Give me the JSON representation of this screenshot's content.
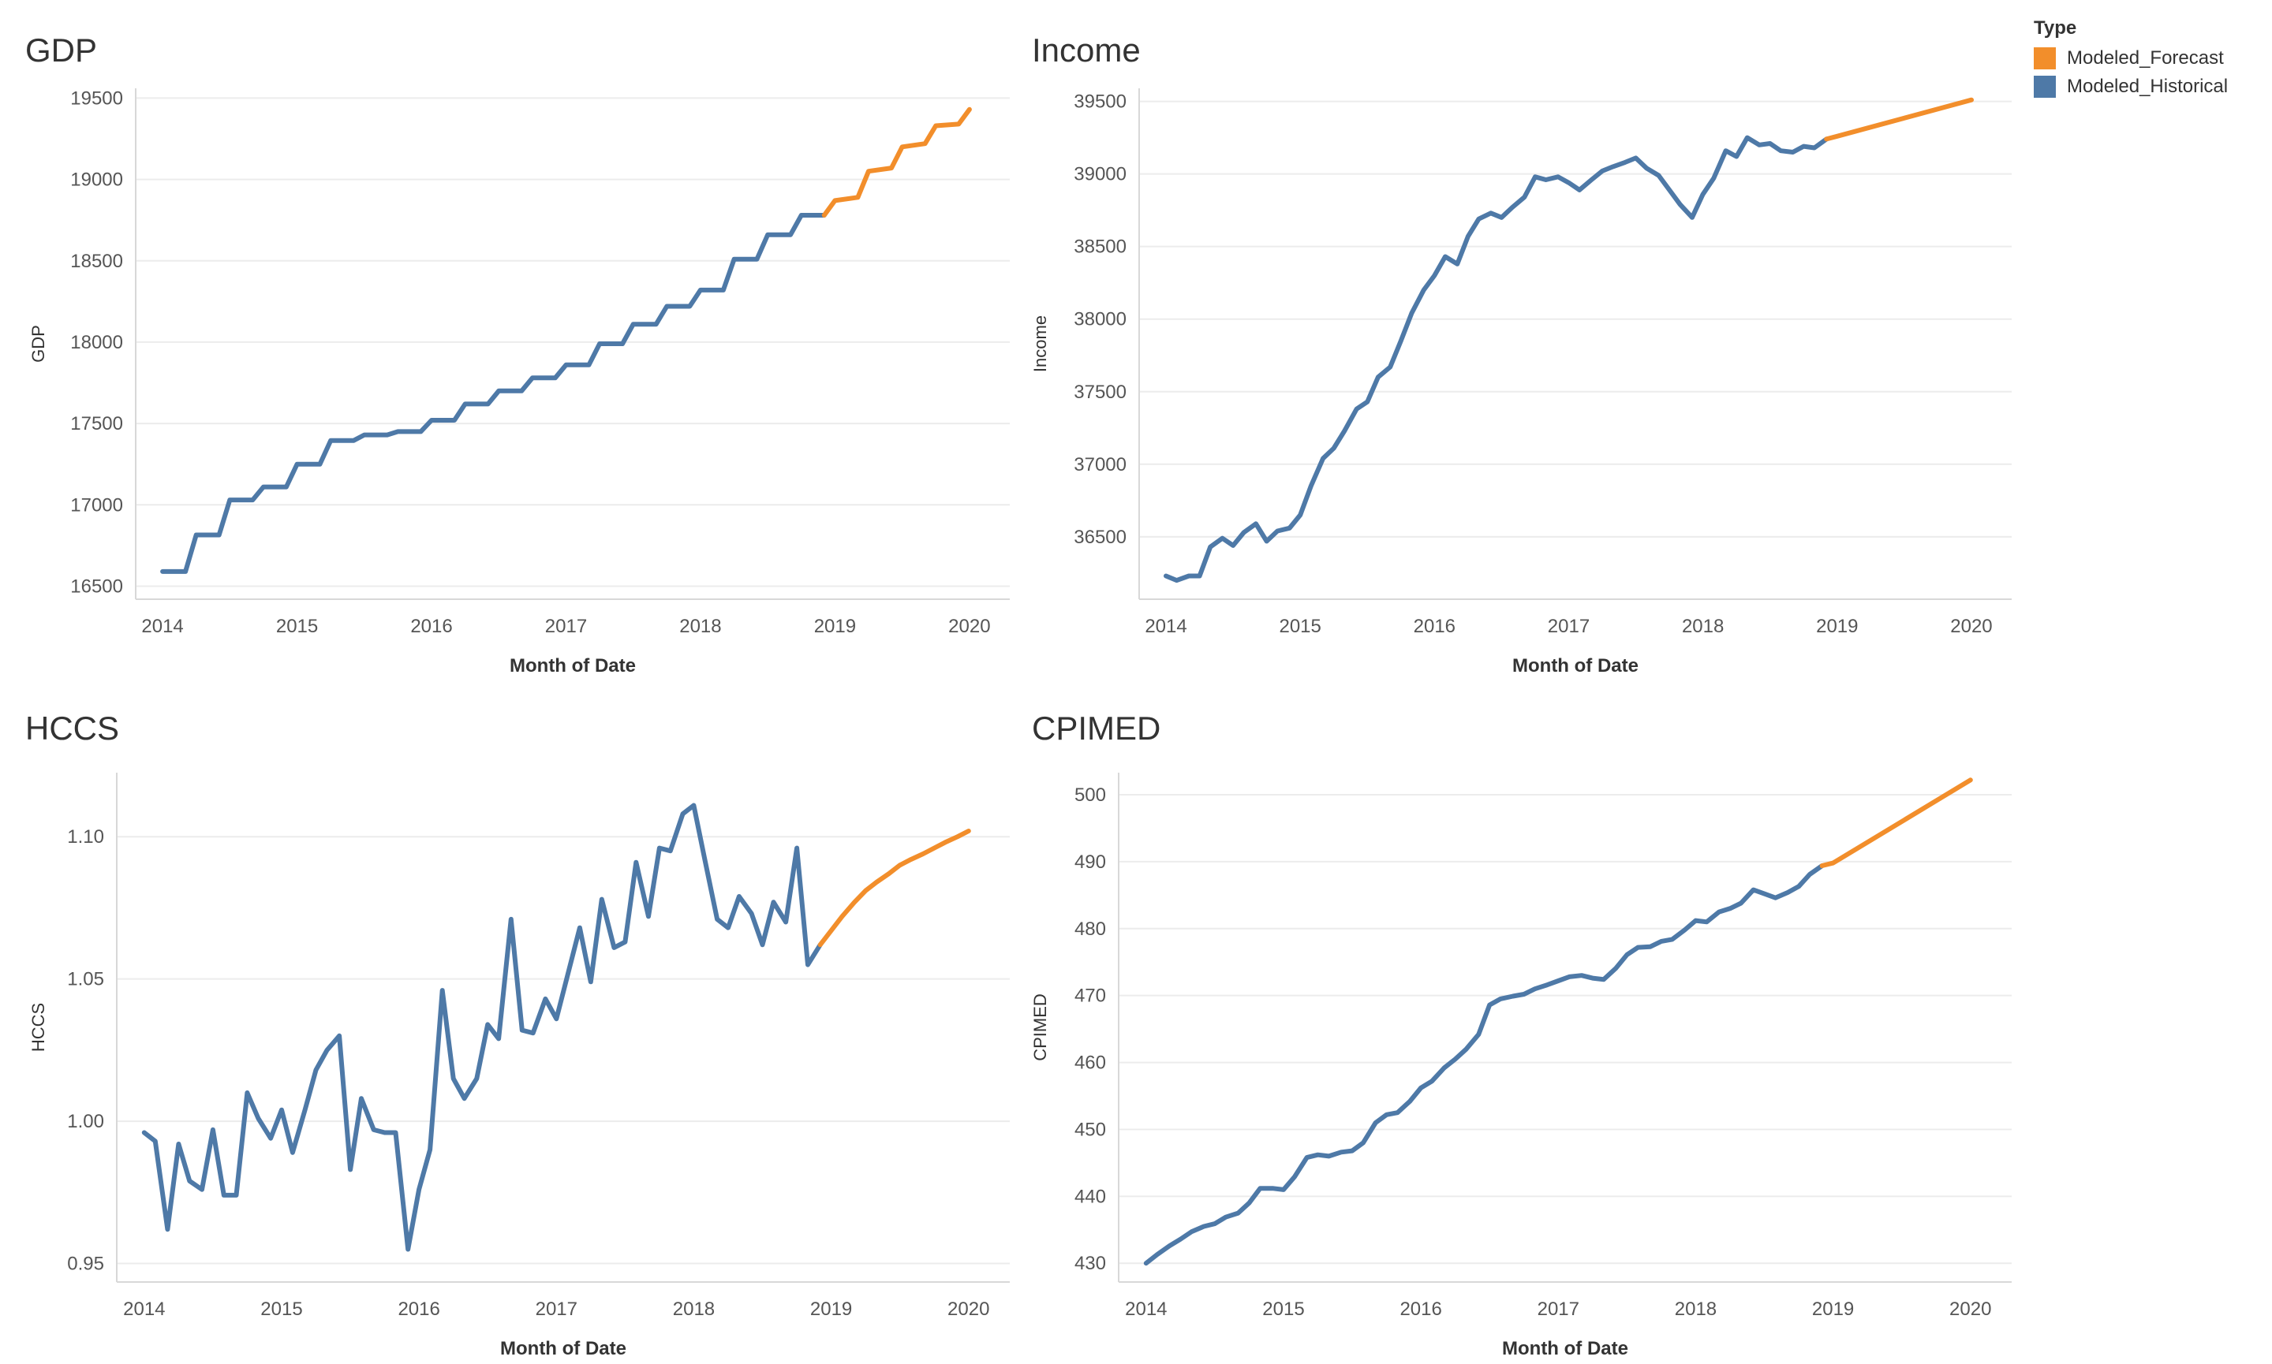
{
  "legend": {
    "title": "Type",
    "items": [
      {
        "label": "Modeled_Forecast",
        "color": "#F28E2B"
      },
      {
        "label": "Modeled_Historical",
        "color": "#4E79A7"
      }
    ]
  },
  "chart_data": [
    {
      "type": "line",
      "title": "GDP",
      "xlabel": "Month of Date",
      "ylabel": "GDP",
      "x_ticks": [
        2014,
        2015,
        2016,
        2017,
        2018,
        2019,
        2020
      ],
      "xlim": [
        2013.8,
        2020.3
      ],
      "y_ticks": [
        16500,
        17000,
        17500,
        18000,
        18500,
        19000,
        19500
      ],
      "ylim": [
        16420,
        19560
      ],
      "series": [
        {
          "name": "Modeled_Historical",
          "color": "#4E79A7",
          "x": [
            2014.0,
            2014.17,
            2014.25,
            2014.42,
            2014.5,
            2014.67,
            2014.75,
            2014.92,
            2015.0,
            2015.17,
            2015.25,
            2015.42,
            2015.5,
            2015.67,
            2015.75,
            2015.92,
            2016.0,
            2016.17,
            2016.25,
            2016.42,
            2016.5,
            2016.67,
            2016.75,
            2016.92,
            2017.0,
            2017.17,
            2017.25,
            2017.42,
            2017.5,
            2017.67,
            2017.75,
            2017.92,
            2018.0,
            2018.17,
            2018.25,
            2018.42,
            2018.5,
            2018.67,
            2018.75,
            2018.92
          ],
          "y": [
            16590,
            16590,
            16815,
            16815,
            17030,
            17030,
            17110,
            17110,
            17250,
            17250,
            17395,
            17395,
            17430,
            17430,
            17450,
            17450,
            17520,
            17520,
            17620,
            17620,
            17700,
            17700,
            17780,
            17780,
            17860,
            17860,
            17990,
            17990,
            18110,
            18110,
            18220,
            18220,
            18320,
            18320,
            18510,
            18510,
            18660,
            18660,
            18780,
            18780
          ]
        },
        {
          "name": "Modeled_Forecast",
          "color": "#F28E2B",
          "x": [
            2018.92,
            2019.0,
            2019.17,
            2019.25,
            2019.42,
            2019.5,
            2019.67,
            2019.75,
            2019.92,
            2020.0
          ],
          "y": [
            18780,
            18870,
            18890,
            19050,
            19070,
            19200,
            19220,
            19330,
            19340,
            19430
          ]
        }
      ]
    },
    {
      "type": "line",
      "title": "Income",
      "xlabel": "Month of Date",
      "ylabel": "Income",
      "x_ticks": [
        2014,
        2015,
        2016,
        2017,
        2018,
        2019,
        2020
      ],
      "xlim": [
        2013.8,
        2020.3
      ],
      "y_ticks": [
        36500,
        37000,
        37500,
        38000,
        38500,
        39000,
        39500
      ],
      "ylim": [
        36070,
        39590
      ],
      "series": [
        {
          "name": "Modeled_Historical",
          "color": "#4E79A7",
          "x": [
            2014.0,
            2014.08,
            2014.17,
            2014.25,
            2014.33,
            2014.42,
            2014.5,
            2014.58,
            2014.67,
            2014.75,
            2014.83,
            2014.92,
            2015.0,
            2015.08,
            2015.17,
            2015.25,
            2015.33,
            2015.42,
            2015.5,
            2015.58,
            2015.67,
            2015.75,
            2015.83,
            2015.92,
            2016.0,
            2016.08,
            2016.17,
            2016.25,
            2016.33,
            2016.42,
            2016.5,
            2016.58,
            2016.67,
            2016.75,
            2016.83,
            2016.92,
            2017.0,
            2017.08,
            2017.17,
            2017.25,
            2017.33,
            2017.42,
            2017.5,
            2017.58,
            2017.67,
            2017.75,
            2017.83,
            2017.92,
            2018.0,
            2018.08,
            2018.17,
            2018.25,
            2018.33,
            2018.42,
            2018.5,
            2018.58,
            2018.67,
            2018.75,
            2018.83,
            2018.92
          ],
          "y": [
            36230,
            36200,
            36230,
            36230,
            36430,
            36490,
            36440,
            36530,
            36590,
            36470,
            36540,
            36560,
            36650,
            36850,
            37040,
            37110,
            37230,
            37380,
            37430,
            37600,
            37670,
            37850,
            38040,
            38200,
            38300,
            38430,
            38380,
            38570,
            38690,
            38730,
            38700,
            38770,
            38840,
            38980,
            38960,
            38980,
            38940,
            38890,
            38960,
            39020,
            39050,
            39080,
            39110,
            39040,
            38990,
            38890,
            38790,
            38700,
            38860,
            38970,
            39160,
            39120,
            39250,
            39200,
            39210,
            39160,
            39150,
            39190,
            39180,
            39240
          ]
        },
        {
          "name": "Modeled_Forecast",
          "color": "#F28E2B",
          "x": [
            2018.92,
            2019.0,
            2020.0
          ],
          "y": [
            39240,
            39260,
            39510
          ]
        }
      ]
    },
    {
      "type": "line",
      "title": "HCCS",
      "xlabel": "Month of Date",
      "ylabel": "HCCS",
      "x_ticks": [
        2014,
        2015,
        2016,
        2017,
        2018,
        2019,
        2020
      ],
      "xlim": [
        2013.8,
        2020.3
      ],
      "y_ticks": [
        0.95,
        1.0,
        1.05,
        1.1
      ],
      "y_tick_labels": [
        "0.95",
        "1.00",
        "1.05",
        "1.10"
      ],
      "ylim": [
        0.9435,
        1.1225
      ],
      "series": [
        {
          "name": "Modeled_Historical",
          "color": "#4E79A7",
          "x": [
            2014.0,
            2014.08,
            2014.17,
            2014.25,
            2014.33,
            2014.42,
            2014.5,
            2014.58,
            2014.67,
            2014.75,
            2014.83,
            2014.92,
            2015.0,
            2015.08,
            2015.17,
            2015.25,
            2015.33,
            2015.42,
            2015.5,
            2015.58,
            2015.67,
            2015.75,
            2015.83,
            2015.92,
            2016.0,
            2016.08,
            2016.17,
            2016.25,
            2016.33,
            2016.42,
            2016.5,
            2016.58,
            2016.67,
            2016.75,
            2016.83,
            2016.92,
            2017.0,
            2017.08,
            2017.17,
            2017.25,
            2017.33,
            2017.42,
            2017.5,
            2017.58,
            2017.67,
            2017.75,
            2017.83,
            2017.92,
            2018.0,
            2018.08,
            2018.17,
            2018.25,
            2018.33,
            2018.42,
            2018.5,
            2018.58,
            2018.67,
            2018.75,
            2018.83,
            2018.92
          ],
          "y": [
            0.996,
            0.993,
            0.962,
            0.992,
            0.979,
            0.976,
            0.997,
            0.974,
            0.974,
            1.01,
            1.001,
            0.994,
            1.004,
            0.989,
            1.004,
            1.018,
            1.025,
            1.03,
            0.983,
            1.008,
            0.997,
            0.996,
            0.996,
            0.955,
            0.976,
            0.99,
            1.046,
            1.015,
            1.008,
            1.015,
            1.034,
            1.029,
            1.071,
            1.032,
            1.031,
            1.043,
            1.036,
            1.051,
            1.068,
            1.049,
            1.078,
            1.061,
            1.063,
            1.091,
            1.072,
            1.096,
            1.095,
            1.108,
            1.111,
            1.092,
            1.071,
            1.068,
            1.079,
            1.073,
            1.062,
            1.077,
            1.07,
            1.096,
            1.055,
            1.062
          ]
        },
        {
          "name": "Modeled_Forecast",
          "color": "#F28E2B",
          "x": [
            2018.92,
            2019.0,
            2019.08,
            2019.17,
            2019.25,
            2019.33,
            2019.42,
            2019.5,
            2019.58,
            2019.67,
            2019.75,
            2019.83,
            2019.92,
            2020.0
          ],
          "y": [
            1.062,
            1.067,
            1.072,
            1.077,
            1.081,
            1.084,
            1.087,
            1.09,
            1.092,
            1.094,
            1.096,
            1.098,
            1.1,
            1.102
          ]
        }
      ]
    },
    {
      "type": "line",
      "title": "CPIMED",
      "xlabel": "Month of Date",
      "ylabel": "CPIMED",
      "x_ticks": [
        2014,
        2015,
        2016,
        2017,
        2018,
        2019,
        2020
      ],
      "xlim": [
        2013.8,
        2020.3
      ],
      "y_ticks": [
        430,
        440,
        450,
        460,
        470,
        480,
        490,
        500
      ],
      "ylim": [
        427.2,
        503.3
      ],
      "series": [
        {
          "name": "Modeled_Historical",
          "color": "#4E79A7",
          "x": [
            2014.0,
            2014.08,
            2014.17,
            2014.25,
            2014.33,
            2014.42,
            2014.5,
            2014.58,
            2014.67,
            2014.75,
            2014.83,
            2014.92,
            2015.0,
            2015.08,
            2015.17,
            2015.25,
            2015.33,
            2015.42,
            2015.5,
            2015.58,
            2015.67,
            2015.75,
            2015.83,
            2015.92,
            2016.0,
            2016.08,
            2016.17,
            2016.25,
            2016.33,
            2016.42,
            2016.5,
            2016.58,
            2016.67,
            2016.75,
            2016.83,
            2016.92,
            2017.0,
            2017.08,
            2017.17,
            2017.25,
            2017.33,
            2017.42,
            2017.5,
            2017.58,
            2017.67,
            2017.75,
            2017.83,
            2017.92,
            2018.0,
            2018.08,
            2018.17,
            2018.25,
            2018.33,
            2018.42,
            2018.5,
            2018.58,
            2018.67,
            2018.75,
            2018.83,
            2018.92
          ],
          "y": [
            430.0,
            431.3,
            432.6,
            433.6,
            434.7,
            435.5,
            435.9,
            436.9,
            437.5,
            439.0,
            441.2,
            441.2,
            441.0,
            442.9,
            445.8,
            446.2,
            446.0,
            446.6,
            446.8,
            448.0,
            451.0,
            452.2,
            452.5,
            454.2,
            456.2,
            457.2,
            459.2,
            460.5,
            462.0,
            464.2,
            468.6,
            469.5,
            469.9,
            470.2,
            471.0,
            471.6,
            472.2,
            472.8,
            473.0,
            472.6,
            472.4,
            474.1,
            476.1,
            477.2,
            477.3,
            478.1,
            478.4,
            479.8,
            481.2,
            481.0,
            482.5,
            483.0,
            483.8,
            485.8,
            485.2,
            484.6,
            485.4,
            486.3,
            488.1,
            489.4
          ]
        },
        {
          "name": "Modeled_Forecast",
          "color": "#F28E2B",
          "x": [
            2018.92,
            2019.0,
            2020.0
          ],
          "y": [
            489.4,
            489.8,
            502.2
          ]
        }
      ]
    }
  ]
}
